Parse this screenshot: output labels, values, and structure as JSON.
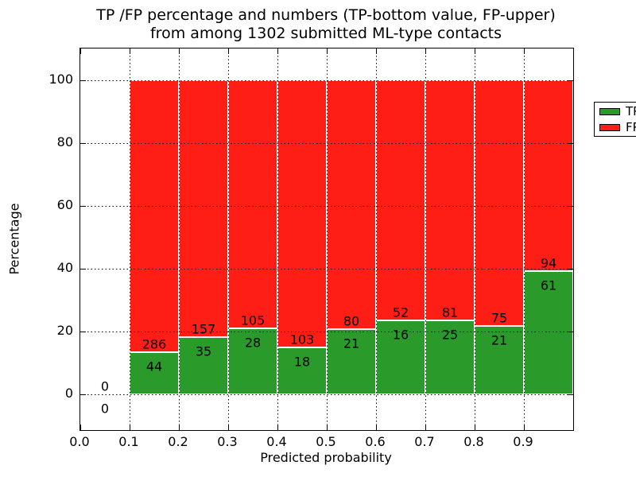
{
  "title": {
    "line1": "TP /FP percentage and numbers (TP-bottom value, FP-upper)",
    "line2": "from among 1302 submitted ML-type contacts"
  },
  "axes": {
    "xlabel": "Predicted probability",
    "ylabel": "Percentage",
    "xtick_labels": [
      "0.0",
      "0.1",
      "0.2",
      "0.3",
      "0.4",
      "0.5",
      "0.6",
      "0.7",
      "0.8",
      "0.9"
    ],
    "ytick_labels": [
      "0",
      "20",
      "40",
      "60",
      "80",
      "100"
    ]
  },
  "legend": {
    "items": [
      {
        "label": "TP",
        "color": "#2a9a2b"
      },
      {
        "label": "FP",
        "color": "#fe1e16"
      }
    ]
  },
  "colors": {
    "tp": "#2a9a2b",
    "fp": "#fe1e16",
    "grid": "#000000",
    "background": "#ffffff",
    "bar_edge": "#ffffff"
  },
  "chart_data": {
    "type": "bar",
    "stacked": true,
    "title": "TP /FP percentage and numbers (TP-bottom value, FP-upper) from among 1302 submitted ML-type contacts",
    "xlabel": "Predicted probability",
    "ylabel": "Percentage",
    "total_contacts": 1302,
    "bin_width": 0.1,
    "xlim": [
      0.0,
      1.0
    ],
    "ylim": [
      -11.25,
      110.0
    ],
    "xticks": [
      0.0,
      0.1,
      0.2,
      0.3,
      0.4,
      0.5,
      0.6,
      0.7,
      0.8,
      0.9
    ],
    "yticks": [
      0,
      20,
      40,
      60,
      80,
      100
    ],
    "grid": true,
    "grid_style": "dotted",
    "legend_position": "upper right",
    "series": [
      {
        "name": "TP",
        "color": "#2a9a2b",
        "position": "bottom"
      },
      {
        "name": "FP",
        "color": "#fe1e16",
        "position": "top"
      }
    ],
    "bins": [
      {
        "range": [
          0.0,
          0.1
        ],
        "tp_count": 0,
        "fp_count": 0,
        "tp_pct": 0.0,
        "fp_pct": 0.0
      },
      {
        "range": [
          0.1,
          0.2
        ],
        "tp_count": 44,
        "fp_count": 286,
        "tp_pct": 13.33,
        "fp_pct": 86.67
      },
      {
        "range": [
          0.2,
          0.3
        ],
        "tp_count": 35,
        "fp_count": 157,
        "tp_pct": 18.23,
        "fp_pct": 81.77
      },
      {
        "range": [
          0.3,
          0.4
        ],
        "tp_count": 28,
        "fp_count": 105,
        "tp_pct": 21.05,
        "fp_pct": 78.95
      },
      {
        "range": [
          0.4,
          0.5
        ],
        "tp_count": 18,
        "fp_count": 103,
        "tp_pct": 14.88,
        "fp_pct": 85.12
      },
      {
        "range": [
          0.5,
          0.6
        ],
        "tp_count": 21,
        "fp_count": 80,
        "tp_pct": 20.79,
        "fp_pct": 79.21
      },
      {
        "range": [
          0.6,
          0.7
        ],
        "tp_count": 16,
        "fp_count": 52,
        "tp_pct": 23.53,
        "fp_pct": 76.47
      },
      {
        "range": [
          0.7,
          0.8
        ],
        "tp_count": 25,
        "fp_count": 81,
        "tp_pct": 23.58,
        "fp_pct": 76.42
      },
      {
        "range": [
          0.8,
          0.9
        ],
        "tp_count": 21,
        "fp_count": 75,
        "tp_pct": 21.88,
        "fp_pct": 78.12
      },
      {
        "range": [
          0.9,
          1.0
        ],
        "tp_count": 61,
        "fp_count": 94,
        "tp_pct": 39.35,
        "fp_pct": 60.65
      }
    ]
  }
}
